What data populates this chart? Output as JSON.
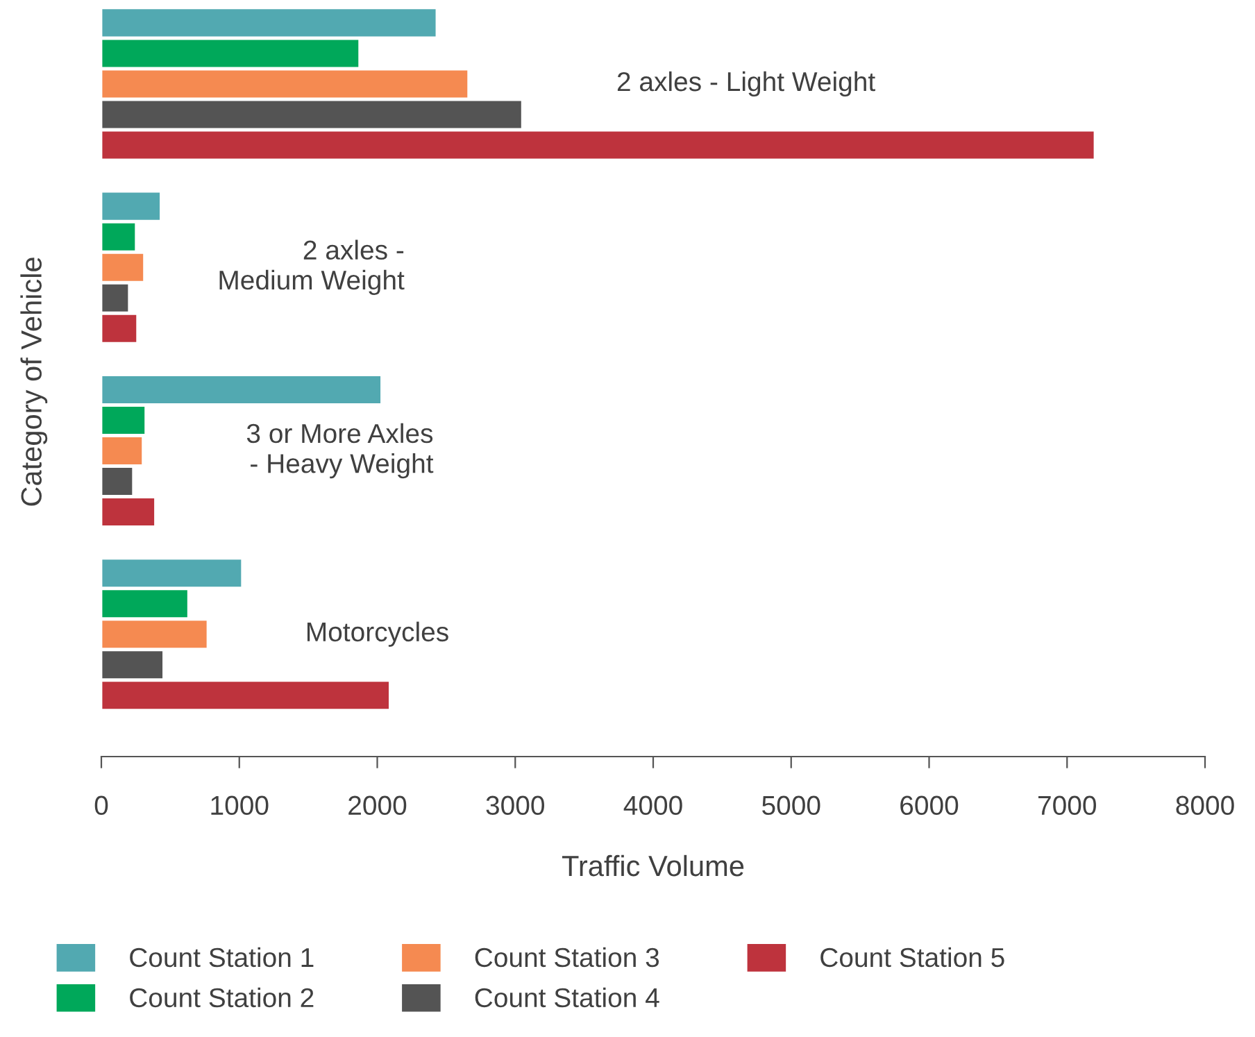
{
  "chart_data": {
    "type": "bar",
    "orientation": "horizontal",
    "xlabel": "Traffic Volume",
    "ylabel": "Category of Vehicle",
    "categories": [
      "2 axles - Light Weight",
      "2 axles -\nMedium Weight",
      "3 or More Axles\n- Heavy Weight",
      "Motorcycles"
    ],
    "series": [
      {
        "name": "Count Station 1",
        "color": "#52a9b1",
        "values": [
          2430,
          430,
          2030,
          1020
        ]
      },
      {
        "name": "Count Station 2",
        "color": "#00a85a",
        "values": [
          1870,
          250,
          320,
          630
        ]
      },
      {
        "name": "Count Station 3",
        "color": "#f58a51",
        "values": [
          2660,
          310,
          300,
          770
        ]
      },
      {
        "name": "Count Station 4",
        "color": "#545454",
        "values": [
          3050,
          200,
          230,
          450
        ]
      },
      {
        "name": "Count Station 5",
        "color": "#be333d",
        "values": [
          7200,
          260,
          390,
          2090
        ]
      }
    ],
    "xlim": [
      0,
      8000
    ],
    "xticks": [
      0,
      1000,
      2000,
      3000,
      4000,
      5000,
      6000,
      7000,
      8000
    ],
    "grid": false,
    "legend": "bottom"
  }
}
